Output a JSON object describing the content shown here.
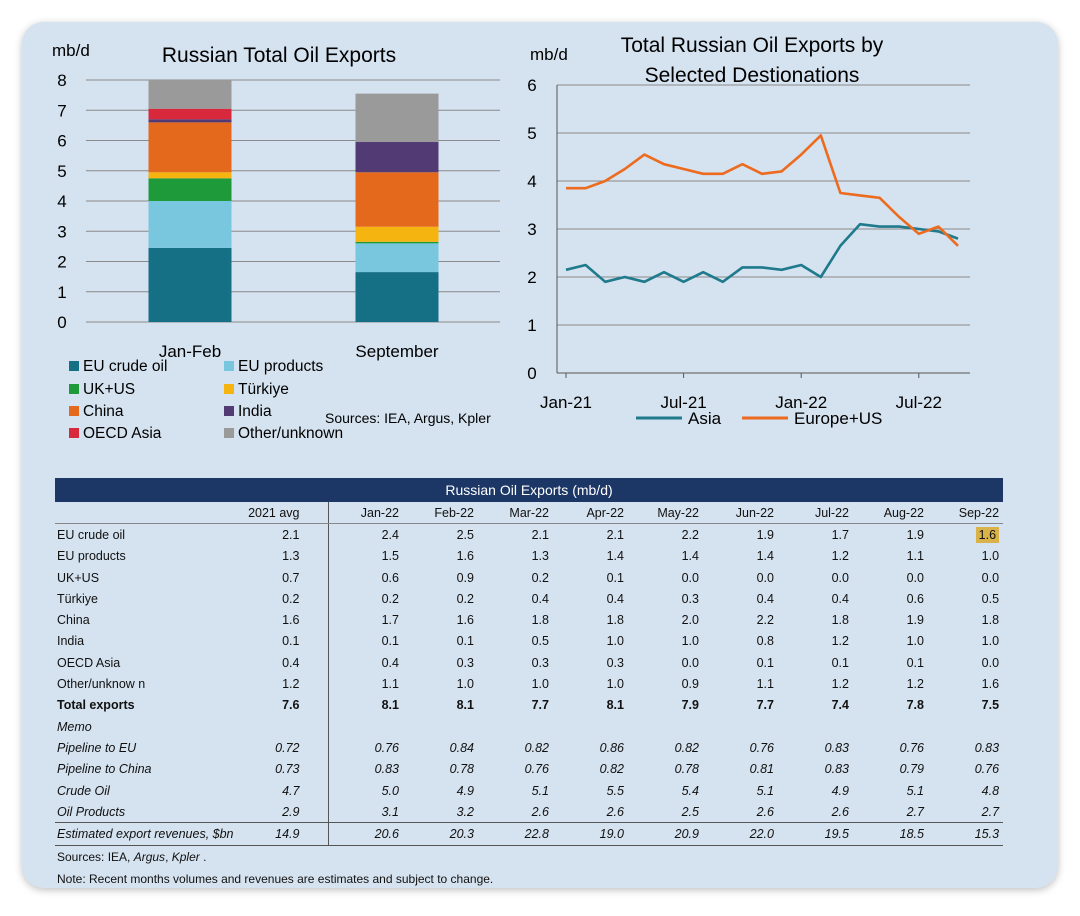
{
  "colors": {
    "eu_crude": "#157086",
    "eu_products": "#79c7de",
    "uk_us": "#1f9a3b",
    "turkiye": "#f5b40f",
    "china": "#e5691c",
    "india": "#523a74",
    "oecd_asia": "#d8283c",
    "other": "#9a9a9a",
    "asia_line": "#1f7a8c",
    "europe_line": "#ec6b1f",
    "header": "#1c3766",
    "highlight": "#d9b24a"
  },
  "chart_data": [
    {
      "type": "bar",
      "stacked": true,
      "title": "Russian Total Oil Exports",
      "ylabel": "mb/d",
      "ylim": [
        0,
        8
      ],
      "yticks": [
        0,
        1,
        2,
        3,
        4,
        5,
        6,
        7,
        8
      ],
      "categories": [
        "Jan-Feb",
        "September"
      ],
      "series": [
        {
          "name": "EU crude oil",
          "key": "eu_crude",
          "values": [
            2.45,
            1.65
          ]
        },
        {
          "name": "EU products",
          "key": "eu_products",
          "values": [
            1.55,
            0.95
          ]
        },
        {
          "name": "UK+US",
          "key": "uk_us",
          "values": [
            0.75,
            0.05
          ]
        },
        {
          "name": "Türkiye",
          "key": "turkiye",
          "values": [
            0.2,
            0.5
          ]
        },
        {
          "name": "China",
          "key": "china",
          "values": [
            1.65,
            1.8
          ]
        },
        {
          "name": "India",
          "key": "india",
          "values": [
            0.1,
            1.0
          ]
        },
        {
          "name": "OECD Asia",
          "key": "oecd_asia",
          "values": [
            0.35,
            0.0
          ]
        },
        {
          "name": "Other/unknown",
          "key": "other",
          "values": [
            0.95,
            1.6
          ]
        }
      ],
      "source": "Sources: IEA, Argus, Kpler"
    },
    {
      "type": "line",
      "title": [
        "Total Russian Oil Exports by",
        "Selected Destionations"
      ],
      "ylabel": "mb/d",
      "ylim": [
        0,
        6
      ],
      "yticks": [
        0,
        1,
        2,
        3,
        4,
        5,
        6
      ],
      "xtick_labels": [
        {
          "index": 0,
          "label": "Jan-21"
        },
        {
          "index": 6,
          "label": "Jul-21"
        },
        {
          "index": 12,
          "label": "Jan-22"
        },
        {
          "index": 18,
          "label": "Jul-22"
        }
      ],
      "x": [
        "Jan-21",
        "Feb-21",
        "Mar-21",
        "Apr-21",
        "May-21",
        "Jun-21",
        "Jul-21",
        "Aug-21",
        "Sep-21",
        "Oct-21",
        "Nov-21",
        "Dec-21",
        "Jan-22",
        "Feb-22",
        "Mar-22",
        "Apr-22",
        "May-22",
        "Jun-22",
        "Jul-22",
        "Aug-22",
        "Sep-22"
      ],
      "series": [
        {
          "name": "Asia",
          "key": "asia_line",
          "values": [
            2.15,
            2.25,
            1.9,
            2.0,
            1.9,
            2.1,
            1.9,
            2.1,
            1.9,
            2.2,
            2.2,
            2.15,
            2.25,
            2.0,
            2.65,
            3.1,
            3.05,
            3.05,
            3.0,
            2.95,
            2.8
          ]
        },
        {
          "name": "Europe+US",
          "key": "europe_line",
          "values": [
            3.85,
            3.85,
            4.0,
            4.25,
            4.55,
            4.35,
            4.25,
            4.15,
            4.15,
            4.35,
            4.15,
            4.2,
            4.55,
            4.95,
            3.75,
            3.7,
            3.65,
            3.25,
            2.9,
            3.05,
            2.65
          ]
        }
      ]
    },
    {
      "type": "table",
      "caption": "Russian Oil Exports (mb/d)",
      "columns": [
        "",
        "2021 avg",
        "Jan-22",
        "Feb-22",
        "Mar-22",
        "Apr-22",
        "May-22",
        "Jun-22",
        "Jul-22",
        "Aug-22",
        "Sep-22"
      ],
      "rows": [
        {
          "style": "normal",
          "cells": [
            "EU crude oil",
            "2.1",
            "2.4",
            "2.5",
            "2.1",
            "2.1",
            "2.2",
            "1.9",
            "1.7",
            "1.9",
            "1.6"
          ]
        },
        {
          "style": "normal",
          "cells": [
            "EU products",
            "1.3",
            "1.5",
            "1.6",
            "1.3",
            "1.4",
            "1.4",
            "1.4",
            "1.2",
            "1.1",
            "1.0"
          ]
        },
        {
          "style": "normal",
          "cells": [
            "UK+US",
            "0.7",
            "0.6",
            "0.9",
            "0.2",
            "0.1",
            "0.0",
            "0.0",
            "0.0",
            "0.0",
            "0.0"
          ]
        },
        {
          "style": "normal",
          "cells": [
            "Türkiye",
            "0.2",
            "0.2",
            "0.2",
            "0.4",
            "0.4",
            "0.3",
            "0.4",
            "0.4",
            "0.6",
            "0.5"
          ]
        },
        {
          "style": "normal",
          "cells": [
            "China",
            "1.6",
            "1.7",
            "1.6",
            "1.8",
            "1.8",
            "2.0",
            "2.2",
            "1.8",
            "1.9",
            "1.8"
          ]
        },
        {
          "style": "normal",
          "cells": [
            "India",
            "0.1",
            "0.1",
            "0.1",
            "0.5",
            "1.0",
            "1.0",
            "0.8",
            "1.2",
            "1.0",
            "1.0"
          ]
        },
        {
          "style": "normal",
          "cells": [
            "OECD Asia",
            "0.4",
            "0.4",
            "0.3",
            "0.3",
            "0.3",
            "0.0",
            "0.1",
            "0.1",
            "0.1",
            "0.0"
          ]
        },
        {
          "style": "normal",
          "cells": [
            "Other/unknow n",
            "1.2",
            "1.1",
            "1.0",
            "1.0",
            "1.0",
            "0.9",
            "1.1",
            "1.2",
            "1.2",
            "1.6"
          ]
        },
        {
          "style": "bold",
          "cells": [
            "Total exports",
            "7.6",
            "8.1",
            "8.1",
            "7.7",
            "8.1",
            "7.9",
            "7.7",
            "7.4",
            "7.8",
            "7.5"
          ]
        },
        {
          "style": "memo",
          "cells": [
            "Memo",
            "",
            "",
            "",
            "",
            "",
            "",
            "",
            "",
            "",
            ""
          ]
        },
        {
          "style": "memo",
          "cells": [
            "Pipeline to EU",
            "0.72",
            "0.76",
            "0.84",
            "0.82",
            "0.86",
            "0.82",
            "0.76",
            "0.83",
            "0.76",
            "0.83"
          ]
        },
        {
          "style": "memo",
          "cells": [
            "Pipeline to China",
            "0.73",
            "0.83",
            "0.78",
            "0.76",
            "0.82",
            "0.78",
            "0.81",
            "0.83",
            "0.79",
            "0.76"
          ]
        },
        {
          "style": "memo",
          "cells": [
            "Crude Oil",
            "4.7",
            "5.0",
            "4.9",
            "5.1",
            "5.5",
            "5.4",
            "5.1",
            "4.9",
            "5.1",
            "4.8"
          ]
        },
        {
          "style": "memo",
          "cells": [
            "Oil Products",
            "2.9",
            "3.1",
            "3.2",
            "2.6",
            "2.6",
            "2.5",
            "2.6",
            "2.6",
            "2.7",
            "2.7"
          ]
        },
        {
          "style": "rev",
          "cells": [
            "Estimated export revenues, $bn",
            "14.9",
            "20.6",
            "20.3",
            "22.8",
            "19.0",
            "20.9",
            "22.0",
            "19.5",
            "18.5",
            "15.3"
          ]
        }
      ],
      "highlight": {
        "row": 0,
        "col": 10
      },
      "footnotes": {
        "sources_prefix": "Sources: IEA, ",
        "sources_argus": "Argus",
        "sources_sep": ", ",
        "sources_kpler": "Kpler",
        "sources_end": " .",
        "note": "Note: Recent months volumes and revenues are estimates and subject to change."
      }
    }
  ]
}
